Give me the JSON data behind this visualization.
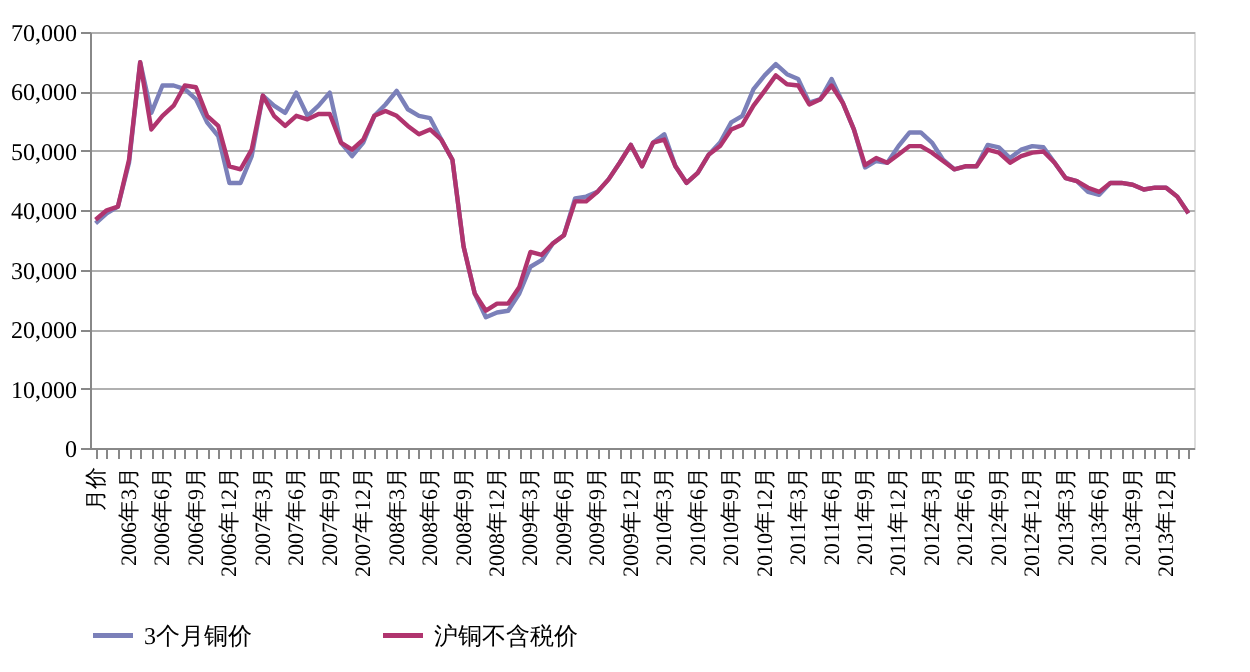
{
  "chart_data": {
    "type": "line",
    "categories": [
      "月价",
      null,
      null,
      "2006年3月",
      null,
      null,
      "2006年6月",
      null,
      null,
      "2006年9月",
      null,
      null,
      "2006年12月",
      null,
      null,
      "2007年3月",
      null,
      null,
      "2007年6月",
      null,
      null,
      "2007年9月",
      null,
      null,
      "2007年12月",
      null,
      null,
      "2008年3月",
      null,
      null,
      "2008年6月",
      null,
      null,
      "2008年9月",
      null,
      null,
      "2008年12月",
      null,
      null,
      "2009年3月",
      null,
      null,
      "2009年6月",
      null,
      null,
      "2009年9月",
      null,
      null,
      "2009年12月",
      null,
      null,
      "2010年3月",
      null,
      null,
      "2010年6月",
      null,
      null,
      "2010年9月",
      null,
      null,
      "2010年12月",
      null,
      null,
      "2011年3月",
      null,
      null,
      "2011年6月",
      null,
      null,
      "2011年9月",
      null,
      null,
      "2011年12月",
      null,
      null,
      "2012年3月",
      null,
      null,
      "2012年6月",
      null,
      null,
      "2012年9月",
      null,
      null,
      "2012年12月",
      null,
      null,
      "2013年3月",
      null,
      null,
      "2013年6月",
      null,
      null,
      "2013年9月",
      null,
      null,
      "2013年12月",
      null,
      null
    ],
    "series": [
      {
        "name": "3个月铜价",
        "color": "#7b80b9",
        "values": [
          37800,
          39500,
          40600,
          48000,
          64900,
          56400,
          61000,
          61000,
          60400,
          58700,
          54800,
          52500,
          44600,
          44600,
          49100,
          59300,
          57600,
          56400,
          59800,
          55900,
          57600,
          59800,
          51400,
          49100,
          51400,
          55900,
          57800,
          60100,
          57000,
          55900,
          55500,
          51900,
          48500,
          33900,
          26000,
          22000,
          22800,
          23100,
          26000,
          30500,
          31600,
          34400,
          35800,
          42000,
          42300,
          43100,
          45200,
          48000,
          51000,
          47400,
          51400,
          52800,
          47400,
          44600,
          46300,
          49400,
          51400,
          54800,
          55900,
          60400,
          62700,
          64600,
          62900,
          62100,
          58100,
          58700,
          62100,
          58100,
          53600,
          47200,
          48300,
          48000,
          50800,
          53100,
          53100,
          51400,
          48500,
          46900,
          47400,
          47400,
          51000,
          50600,
          48800,
          50200,
          50800,
          50600,
          48000,
          45400,
          44900,
          43100,
          42600,
          44600,
          44600,
          44300,
          43500,
          43800,
          43800,
          42300,
          39500
        ]
      },
      {
        "name": "沪铜不含税价",
        "color": "#b0346e",
        "values": [
          38400,
          40000,
          40600,
          48500,
          64900,
          53600,
          55900,
          57600,
          61000,
          60700,
          55900,
          54200,
          47400,
          46900,
          50200,
          59300,
          55900,
          54200,
          55900,
          55300,
          56200,
          56200,
          51400,
          50200,
          51900,
          55900,
          56700,
          55900,
          54200,
          52800,
          53600,
          51900,
          48500,
          33900,
          26000,
          23100,
          24300,
          24300,
          27100,
          33000,
          32500,
          34400,
          35800,
          41500,
          41500,
          43100,
          45200,
          48000,
          51000,
          47400,
          51400,
          51900,
          47400,
          44600,
          46300,
          49400,
          50800,
          53600,
          54400,
          57600,
          60100,
          62700,
          61200,
          61000,
          57800,
          58700,
          61000,
          58100,
          53600,
          47600,
          48800,
          48000,
          49400,
          50800,
          50800,
          49700,
          48300,
          46900,
          47400,
          47400,
          50200,
          49700,
          48000,
          49100,
          49700,
          49900,
          48000,
          45400,
          44900,
          43800,
          43100,
          44600,
          44600,
          44300,
          43500,
          43800,
          43800,
          42300,
          39500
        ]
      }
    ],
    "ylim": [
      0,
      70000
    ],
    "yticks": [
      0,
      {
        "value": 10000,
        "label": "10,000"
      },
      {
        "value": 20000,
        "label": "20,000"
      },
      {
        "value": 30000,
        "label": "30,000"
      },
      {
        "value": 40000,
        "label": "40,000"
      },
      {
        "value": 50000,
        "label": "50,000"
      },
      {
        "value": 60000,
        "label": "60,000"
      },
      {
        "value": 70000,
        "label": "70,000"
      }
    ],
    "grid": "y",
    "legend": "bottom",
    "marker": "none",
    "line_style": "solid"
  }
}
